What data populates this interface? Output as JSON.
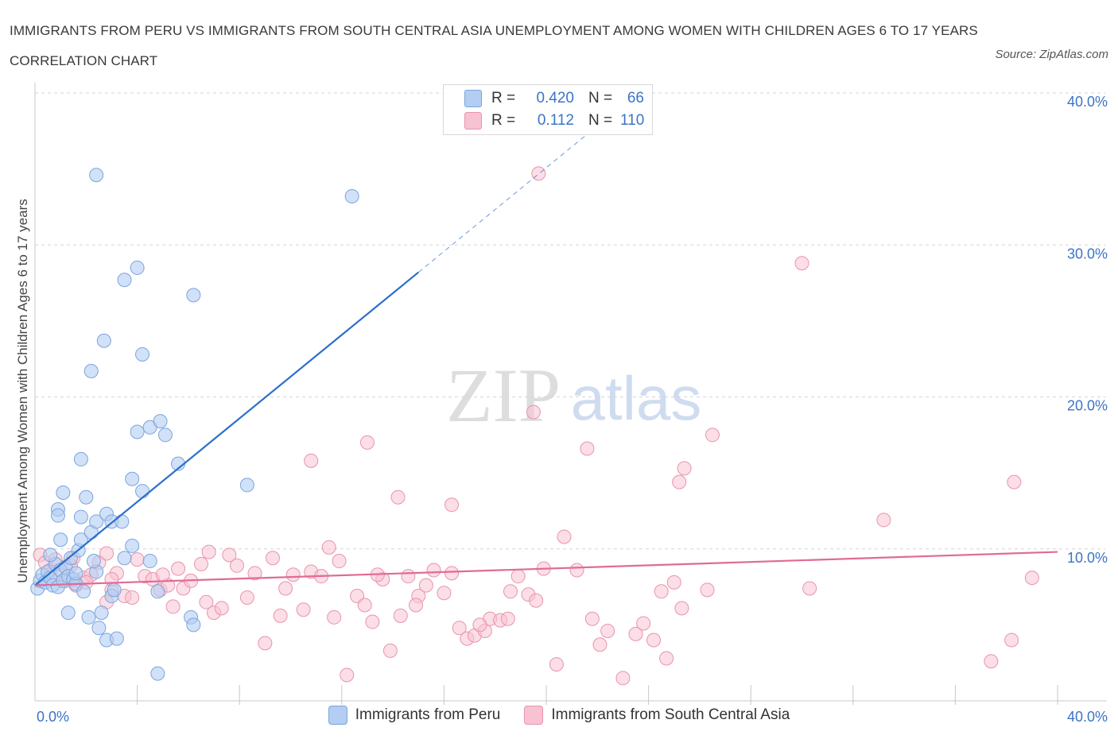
{
  "header": {
    "title": "IMMIGRANTS FROM PERU VS IMMIGRANTS FROM SOUTH CENTRAL ASIA UNEMPLOYMENT AMONG WOMEN WITH CHILDREN AGES 6 TO 17 YEARS CORRELATION CHART",
    "source": "Source: ZipAtlas.com"
  },
  "watermark": {
    "zip": "ZIP",
    "atlas": "atlas"
  },
  "legend": {
    "r_label": "R =",
    "n_label": "N =",
    "rows": [
      {
        "r_value": "0.420",
        "n_value": "66"
      },
      {
        "r_value": "0.112",
        "n_value": "110"
      }
    ]
  },
  "colors": {
    "peru_fill": "#b3cdf3",
    "peru_stroke": "#7aa5dd",
    "peru_line": "#2d6fcc",
    "asia_fill": "#f7c2d2",
    "asia_stroke": "#e894ae",
    "asia_line": "#e06b96",
    "grid": "#d5d5d5",
    "tick_label": "#3b74c5"
  },
  "chart_data": {
    "type": "scatter",
    "title": "IMMIGRANTS FROM PERU VS IMMIGRANTS FROM SOUTH CENTRAL ASIA UNEMPLOYMENT AMONG WOMEN WITH CHILDREN AGES 6 TO 17 YEARS CORRELATION CHART",
    "xlabel": "",
    "ylabel": "Unemployment Among Women with Children Ages 6 to 17 years",
    "xlim": [
      0,
      40
    ],
    "ylim": [
      0,
      40
    ],
    "x_tick_labels": [
      "0.0%",
      "40.0%"
    ],
    "y_ticks": [
      10,
      20,
      30,
      40
    ],
    "y_tick_labels": [
      "10.0%",
      "20.0%",
      "30.0%",
      "40.0%"
    ],
    "grid": true,
    "legend_position": "top-center",
    "series": [
      {
        "name": "Immigrants from Peru",
        "R": 0.42,
        "N": 66,
        "trend": {
          "x0": 0,
          "y0": 7.6,
          "x1": 15.0,
          "y1": 28.2,
          "dash_to_x": 22.7,
          "dash_to_y": 38.8
        },
        "points": [
          [
            0.1,
            7.4
          ],
          [
            0.2,
            7.9
          ],
          [
            0.3,
            8.3
          ],
          [
            0.4,
            7.8
          ],
          [
            0.5,
            8.5
          ],
          [
            0.6,
            8.1
          ],
          [
            0.7,
            7.6
          ],
          [
            0.8,
            9.0
          ],
          [
            0.9,
            7.5
          ],
          [
            1.0,
            8.6
          ],
          [
            1.1,
            7.9
          ],
          [
            1.2,
            8.8
          ],
          [
            1.3,
            8.2
          ],
          [
            1.4,
            9.4
          ],
          [
            1.5,
            8.0
          ],
          [
            1.6,
            7.7
          ],
          [
            0.6,
            9.6
          ],
          [
            1.7,
            9.9
          ],
          [
            1.0,
            10.6
          ],
          [
            0.9,
            12.6
          ],
          [
            0.9,
            12.2
          ],
          [
            1.1,
            13.7
          ],
          [
            1.8,
            10.6
          ],
          [
            1.8,
            12.1
          ],
          [
            2.0,
            13.4
          ],
          [
            2.2,
            11.1
          ],
          [
            2.4,
            11.8
          ],
          [
            2.8,
            12.3
          ],
          [
            3.0,
            11.8
          ],
          [
            3.4,
            11.8
          ],
          [
            3.8,
            14.6
          ],
          [
            4.2,
            13.8
          ],
          [
            1.8,
            15.9
          ],
          [
            2.2,
            21.7
          ],
          [
            2.7,
            23.7
          ],
          [
            3.5,
            27.7
          ],
          [
            4.0,
            28.5
          ],
          [
            4.2,
            22.8
          ],
          [
            4.0,
            17.7
          ],
          [
            4.5,
            18.0
          ],
          [
            4.9,
            18.4
          ],
          [
            5.1,
            17.5
          ],
          [
            5.6,
            15.6
          ],
          [
            6.2,
            26.7
          ],
          [
            8.3,
            14.2
          ],
          [
            1.3,
            5.8
          ],
          [
            2.1,
            5.5
          ],
          [
            2.6,
            5.8
          ],
          [
            2.8,
            4.0
          ],
          [
            3.2,
            4.1
          ],
          [
            2.5,
            4.8
          ],
          [
            3.0,
            6.9
          ],
          [
            3.5,
            9.4
          ],
          [
            3.8,
            10.2
          ],
          [
            4.5,
            9.2
          ],
          [
            4.8,
            7.2
          ],
          [
            1.9,
            7.2
          ],
          [
            2.4,
            8.5
          ],
          [
            2.3,
            9.2
          ],
          [
            3.1,
            7.3
          ],
          [
            6.1,
            5.5
          ],
          [
            6.2,
            5.0
          ],
          [
            4.8,
            1.8
          ],
          [
            2.4,
            34.6
          ],
          [
            12.4,
            33.2
          ],
          [
            1.6,
            8.4
          ]
        ]
      },
      {
        "name": "Immigrants from South Central Asia",
        "R": 0.112,
        "N": 110,
        "trend": {
          "x0": 0,
          "y0": 7.6,
          "x1": 40,
          "y1": 9.8
        },
        "points": [
          [
            0.2,
            9.6
          ],
          [
            0.4,
            9.1
          ],
          [
            0.6,
            8.6
          ],
          [
            0.8,
            9.3
          ],
          [
            1.0,
            8.3
          ],
          [
            1.2,
            7.9
          ],
          [
            1.4,
            8.9
          ],
          [
            1.6,
            7.6
          ],
          [
            1.9,
            8.1
          ],
          [
            2.2,
            8.3
          ],
          [
            2.5,
            9.1
          ],
          [
            2.8,
            6.5
          ],
          [
            3.0,
            7.3
          ],
          [
            3.2,
            8.4
          ],
          [
            3.5,
            6.9
          ],
          [
            3.8,
            6.8
          ],
          [
            4.0,
            9.3
          ],
          [
            4.3,
            8.2
          ],
          [
            4.6,
            8.0
          ],
          [
            4.9,
            7.3
          ],
          [
            5.2,
            7.6
          ],
          [
            5.4,
            6.2
          ],
          [
            5.6,
            8.7
          ],
          [
            5.8,
            7.4
          ],
          [
            6.1,
            7.9
          ],
          [
            6.5,
            9.0
          ],
          [
            6.7,
            6.5
          ],
          [
            7.0,
            5.8
          ],
          [
            7.3,
            6.1
          ],
          [
            7.6,
            9.6
          ],
          [
            7.9,
            8.9
          ],
          [
            8.3,
            6.8
          ],
          [
            8.6,
            8.4
          ],
          [
            9.0,
            3.8
          ],
          [
            9.3,
            9.4
          ],
          [
            9.6,
            5.6
          ],
          [
            9.8,
            7.4
          ],
          [
            10.1,
            8.3
          ],
          [
            10.5,
            6.0
          ],
          [
            10.8,
            8.5
          ],
          [
            11.2,
            8.2
          ],
          [
            11.5,
            10.1
          ],
          [
            11.9,
            9.2
          ],
          [
            12.2,
            1.7
          ],
          [
            12.6,
            6.9
          ],
          [
            12.9,
            6.3
          ],
          [
            13.2,
            5.2
          ],
          [
            13.6,
            8.0
          ],
          [
            13.9,
            3.3
          ],
          [
            14.3,
            5.6
          ],
          [
            14.6,
            8.2
          ],
          [
            15.0,
            6.9
          ],
          [
            15.3,
            7.6
          ],
          [
            15.6,
            8.6
          ],
          [
            16.0,
            7.1
          ],
          [
            16.3,
            8.4
          ],
          [
            16.6,
            4.8
          ],
          [
            16.9,
            4.1
          ],
          [
            17.2,
            4.3
          ],
          [
            17.6,
            4.6
          ],
          [
            17.8,
            5.4
          ],
          [
            18.2,
            5.3
          ],
          [
            18.5,
            5.4
          ],
          [
            18.9,
            8.2
          ],
          [
            19.3,
            7.0
          ],
          [
            19.6,
            6.6
          ],
          [
            19.9,
            8.7
          ],
          [
            20.4,
            2.4
          ],
          [
            20.7,
            10.8
          ],
          [
            21.2,
            8.6
          ],
          [
            21.6,
            16.6
          ],
          [
            21.8,
            5.4
          ],
          [
            22.1,
            3.7
          ],
          [
            22.4,
            4.6
          ],
          [
            23.0,
            1.5
          ],
          [
            23.5,
            4.4
          ],
          [
            23.8,
            5.1
          ],
          [
            24.2,
            4.0
          ],
          [
            24.5,
            7.2
          ],
          [
            24.7,
            2.8
          ],
          [
            25.3,
            6.1
          ],
          [
            25.2,
            14.4
          ],
          [
            25.4,
            15.3
          ],
          [
            26.3,
            7.3
          ],
          [
            26.5,
            17.5
          ],
          [
            30.0,
            28.8
          ],
          [
            30.3,
            7.4
          ],
          [
            33.2,
            11.9
          ],
          [
            37.4,
            2.6
          ],
          [
            38.2,
            4.0
          ],
          [
            38.3,
            14.4
          ],
          [
            39.0,
            8.1
          ],
          [
            14.2,
            13.4
          ],
          [
            16.3,
            12.9
          ],
          [
            13.0,
            17.0
          ],
          [
            10.8,
            15.8
          ],
          [
            19.5,
            19.0
          ],
          [
            19.7,
            34.7
          ],
          [
            3.0,
            8.0
          ],
          [
            2.0,
            7.8
          ],
          [
            1.5,
            9.4
          ],
          [
            2.8,
            9.7
          ],
          [
            5.0,
            8.3
          ],
          [
            6.8,
            9.8
          ],
          [
            11.7,
            5.5
          ],
          [
            13.4,
            8.3
          ],
          [
            14.9,
            6.3
          ],
          [
            17.4,
            5.0
          ],
          [
            18.6,
            7.2
          ],
          [
            25.0,
            7.8
          ]
        ]
      }
    ]
  },
  "bottom_legend": {
    "items": [
      "Immigrants from Peru",
      "Immigrants from South Central Asia"
    ]
  }
}
